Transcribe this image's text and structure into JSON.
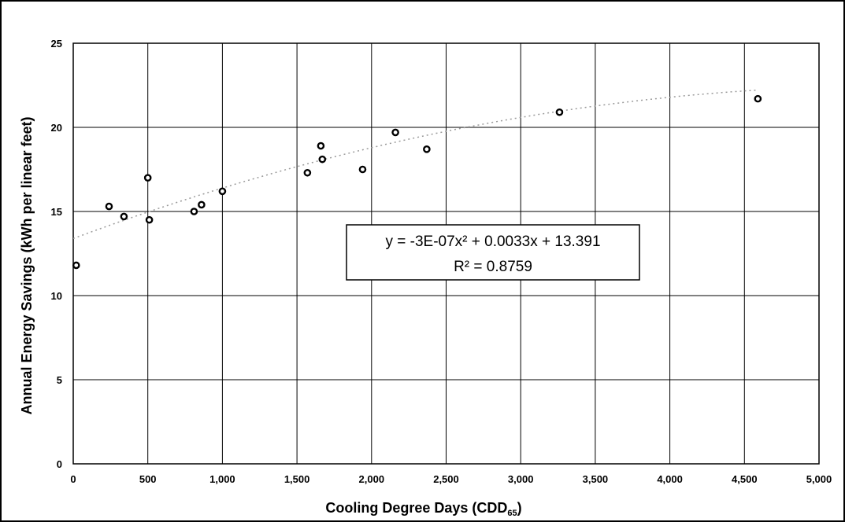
{
  "chart_data": {
    "type": "scatter",
    "xlabel": "Cooling Degree Days (CDD",
    "xlabel_sub": "65",
    "xlabel_end": ")",
    "ylabel": "Annual Energy Savings (kWh per linear feet)",
    "xlim": [
      0,
      5000
    ],
    "ylim": [
      0,
      25
    ],
    "x_ticks": [
      "0",
      "500",
      "1,000",
      "1,500",
      "2,000",
      "2,500",
      "3,000",
      "3,500",
      "4,000",
      "4,500",
      "5,000"
    ],
    "y_ticks": [
      "0",
      "5",
      "10",
      "15",
      "20",
      "25"
    ],
    "grid": true,
    "series": [
      {
        "x": [
          20,
          240,
          340,
          500,
          510,
          810,
          860,
          1000,
          1570,
          1660,
          1670,
          1940,
          2160,
          2370,
          3260,
          4590
        ],
        "y": [
          11.8,
          15.3,
          14.7,
          17.0,
          14.5,
          15.0,
          15.4,
          16.2,
          17.3,
          18.9,
          18.1,
          17.5,
          19.7,
          18.7,
          20.9,
          21.7
        ]
      }
    ],
    "trendline": {
      "type": "polynomial",
      "coefficients": [
        -3e-07,
        0.0033,
        13.391
      ],
      "equation_text": "y = -3E-07x² + 0.0033x + 13.391",
      "r2_text": "R² = 0.8759"
    },
    "colors": {
      "marker": "#000000",
      "grid": "#000000",
      "trendline": "#9a9a9a"
    }
  }
}
